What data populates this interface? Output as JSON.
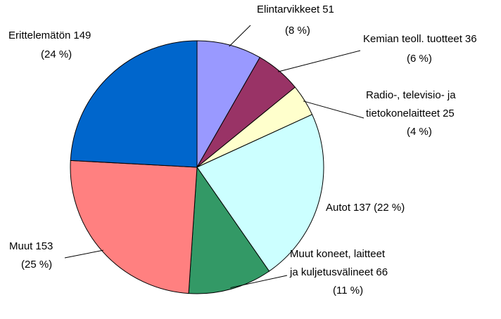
{
  "chart_data": {
    "type": "pie",
    "categories": [
      "Elintarvikkeet",
      "Kemian teoll. tuotteet",
      "Radio-, televisio- ja tietokonelaitteet",
      "Autot",
      "Muut  koneet, laitteet ja kuljetusvälineet",
      "Muut",
      "Erittelemätön"
    ],
    "values": [
      51,
      36,
      25,
      137,
      66,
      153,
      149
    ],
    "percent_labels": [
      "(8 %)",
      "(6 %)",
      "(4 %)",
      "(22 %)",
      "(11 %)",
      "(25 %)",
      "(24 %)"
    ],
    "colors": [
      "#9999ff",
      "#993366",
      "#ffffcc",
      "#ccffff",
      "#339966",
      "#ff8080",
      "#0066cc"
    ]
  }
}
